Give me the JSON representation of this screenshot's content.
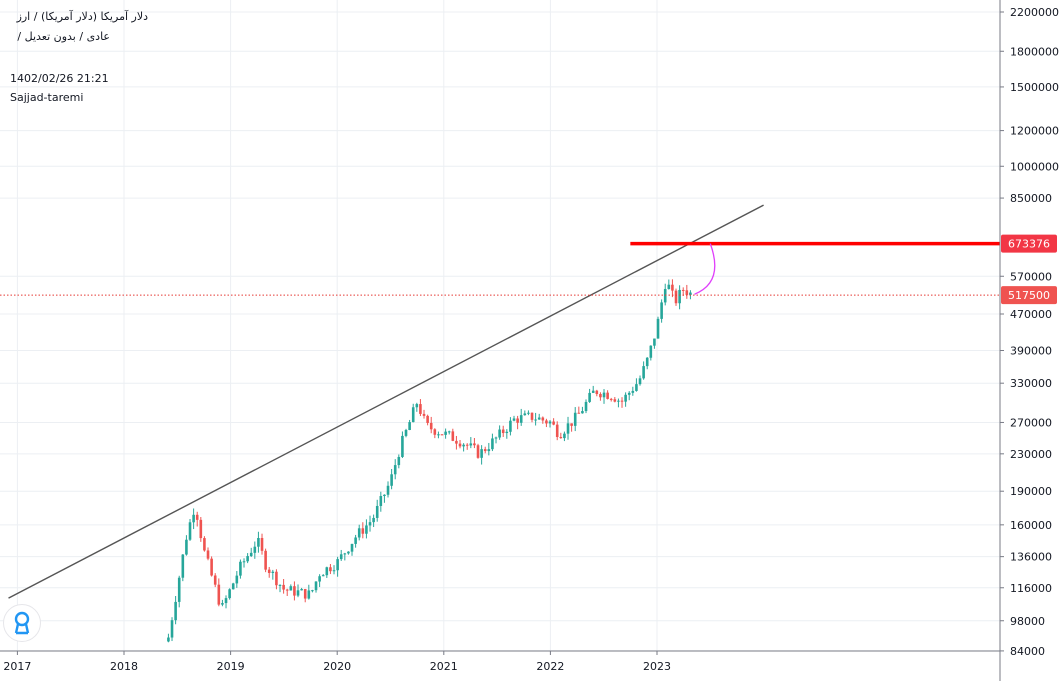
{
  "header": {
    "line1": "دلار آمریکا (دلار آمریکا)  /  ارز",
    "line2": "عادی  /  بدون تعدیل  /",
    "timestamp": "1402/02/26 21:21",
    "author": "Sajjad-taremi"
  },
  "logo_icon": "tradingview-logo-icon",
  "colors": {
    "up": "#26a69a",
    "down": "#ef5350",
    "trendline": "#555555",
    "resistance": "#ff0000",
    "price_line": "#e53935",
    "arc": "#e040fb"
  },
  "chart_data": {
    "type": "candlestick",
    "symbol": "دلار آمریکا (دلار آمریکا)",
    "y_scale": "log",
    "ylim": [
      80000,
      2300000
    ],
    "y_ticks": [
      "2200000",
      "1800000",
      "1500000",
      "1200000",
      "1000000",
      "850000",
      "570000",
      "470000",
      "390000",
      "330000",
      "270000",
      "230000",
      "190000",
      "160000",
      "136000",
      "116000",
      "98000",
      "84000"
    ],
    "x_ticks": [
      "2017",
      "2018",
      "2019",
      "2020",
      "2021",
      "2022",
      "2023"
    ],
    "price_labels": [
      {
        "value": 673376,
        "label": "673376",
        "style": "resistance"
      },
      {
        "value": 517500,
        "label": "517500",
        "style": "last"
      }
    ],
    "last_price": 517500,
    "resistance_level": 673376,
    "trendline": {
      "from": {
        "date": "2016-12",
        "price": 110000
      },
      "to": {
        "date": "2024-01",
        "price": 820000
      }
    },
    "series_path": [
      {
        "date": "2018-06",
        "price": 90000
      },
      {
        "date": "2018-08",
        "price": 150000
      },
      {
        "date": "2018-09",
        "price": 178000
      },
      {
        "date": "2018-10",
        "price": 140000
      },
      {
        "date": "2018-12",
        "price": 104000
      },
      {
        "date": "2019-02",
        "price": 128000
      },
      {
        "date": "2019-04",
        "price": 148000
      },
      {
        "date": "2019-05",
        "price": 130000
      },
      {
        "date": "2019-07",
        "price": 115000
      },
      {
        "date": "2019-10",
        "price": 112000
      },
      {
        "date": "2019-11",
        "price": 125000
      },
      {
        "date": "2020-01",
        "price": 132000
      },
      {
        "date": "2020-03",
        "price": 150000
      },
      {
        "date": "2020-05",
        "price": 165000
      },
      {
        "date": "2020-07",
        "price": 200000
      },
      {
        "date": "2020-08",
        "price": 235000
      },
      {
        "date": "2020-09",
        "price": 265000
      },
      {
        "date": "2020-10",
        "price": 300000
      },
      {
        "date": "2020-11",
        "price": 265000
      },
      {
        "date": "2021-01",
        "price": 255000
      },
      {
        "date": "2021-03",
        "price": 245000
      },
      {
        "date": "2021-05",
        "price": 230000
      },
      {
        "date": "2021-07",
        "price": 250000
      },
      {
        "date": "2021-09",
        "price": 275000
      },
      {
        "date": "2021-11",
        "price": 278000
      },
      {
        "date": "2022-01",
        "price": 270000
      },
      {
        "date": "2022-02",
        "price": 255000
      },
      {
        "date": "2022-04",
        "price": 278000
      },
      {
        "date": "2022-06",
        "price": 318000
      },
      {
        "date": "2022-08",
        "price": 310000
      },
      {
        "date": "2022-09",
        "price": 300000
      },
      {
        "date": "2022-11",
        "price": 335000
      },
      {
        "date": "2022-12",
        "price": 375000
      },
      {
        "date": "2023-01",
        "price": 440000
      },
      {
        "date": "2023-02",
        "price": 560000
      },
      {
        "date": "2023-03",
        "price": 500000
      },
      {
        "date": "2023-04",
        "price": 535000
      },
      {
        "date": "2023-05",
        "price": 517500
      }
    ]
  }
}
